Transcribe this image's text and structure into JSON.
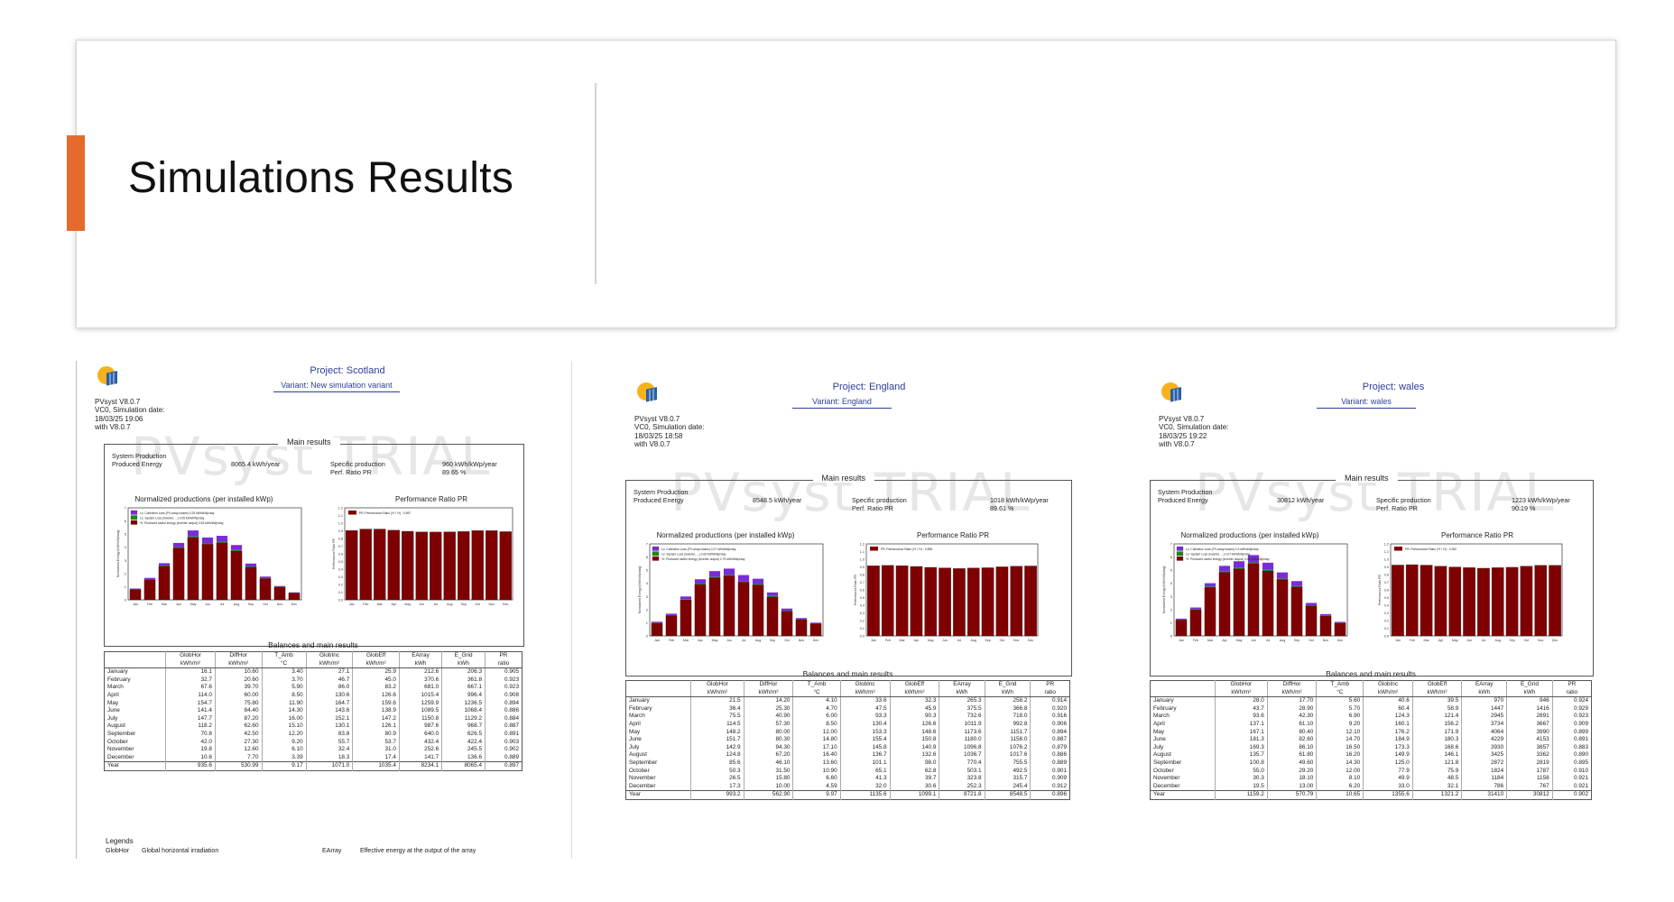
{
  "slide": {
    "title": "Simulations Results"
  },
  "colors": {
    "accent": "#e46b2b",
    "bar_yf": "#7f0000",
    "bar_lc": "#7a2bd8",
    "bar_ls": "#1a8a1a",
    "project_text": "#2c3e9a"
  },
  "reports": [
    {
      "id": "scotland",
      "project": "Project: Scotland",
      "variant": "Variant: New simulation variant",
      "software": [
        "PVsyst V8.0.7",
        "VC0, Simulation date:",
        "18/03/25 19:06",
        "with V8.0.7"
      ],
      "watermark": "PVsyst TRIAL",
      "main_results_title": "Main results",
      "system_production_label": "System Production",
      "produced_energy_label": "Produced Energy",
      "produced_energy": "8065.4 kWh/year",
      "specific_production_label": "Specific production",
      "specific_production": "960 kWh/kWp/year",
      "pr_label": "Perf. Ratio PR",
      "pr_value": "89.65 %",
      "norm_chart_title": "Normalized productions (per installed kWp)",
      "norm_legend": [
        "Lc: Collection Loss (PV-array losses)   0.25 kWh/kWp/day",
        "Ls: System Loss (inverter, ...)   0.06 kWh/kWp/day",
        "Yf: Produced useful energy (inverter output)   2.63 kWh/kWp/day"
      ],
      "pr_chart_title": "Performance Ratio PR",
      "pr_legend": "PR: Performance Ratio (Yf / Yr) :  0.897",
      "balances_title": "Balances and main results",
      "columns": [
        "",
        "GlobHor",
        "DiffHor",
        "T_Amb",
        "GlobInc",
        "GlobEff",
        "EArray",
        "E_Grid",
        "PR"
      ],
      "units": [
        "",
        "kWh/m²",
        "kWh/m²",
        "°C",
        "kWh/m²",
        "kWh/m²",
        "kWh",
        "kWh",
        "ratio"
      ],
      "rows": [
        [
          "January",
          "16.1",
          "10.60",
          "3.40",
          "27.1",
          "25.9",
          "212.6",
          "206.3",
          "0.905"
        ],
        [
          "February",
          "32.7",
          "20.60",
          "3.70",
          "46.7",
          "45.0",
          "370.6",
          "361.8",
          "0.923"
        ],
        [
          "March",
          "67.6",
          "39.70",
          "5.90",
          "86.0",
          "83.2",
          "681.0",
          "667.1",
          "0.923"
        ],
        [
          "April",
          "114.0",
          "60.00",
          "8.50",
          "130.6",
          "126.6",
          "1015.4",
          "996.4",
          "0.908"
        ],
        [
          "May",
          "154.7",
          "75.80",
          "11.90",
          "164.7",
          "159.6",
          "1259.9",
          "1236.5",
          "0.894"
        ],
        [
          "June",
          "141.4",
          "84.40",
          "14.30",
          "143.6",
          "138.9",
          "1089.5",
          "1068.4",
          "0.886"
        ],
        [
          "July",
          "147.7",
          "87.20",
          "16.00",
          "152.1",
          "147.2",
          "1150.8",
          "1129.2",
          "0.884"
        ],
        [
          "August",
          "118.2",
          "62.60",
          "15.10",
          "130.1",
          "126.1",
          "987.6",
          "968.7",
          "0.887"
        ],
        [
          "September",
          "70.8",
          "42.50",
          "12.20",
          "83.8",
          "80.9",
          "640.0",
          "626.5",
          "0.891"
        ],
        [
          "October",
          "42.0",
          "27.30",
          "9.20",
          "55.7",
          "53.7",
          "432.4",
          "422.4",
          "0.903"
        ],
        [
          "November",
          "19.8",
          "12.60",
          "6.10",
          "32.4",
          "31.0",
          "252.6",
          "245.5",
          "0.902"
        ],
        [
          "December",
          "10.6",
          "7.70",
          "3.39",
          "18.3",
          "17.4",
          "141.7",
          "136.6",
          "0.889"
        ]
      ],
      "year": [
        "Year",
        "935.6",
        "530.99",
        "9.17",
        "1071.0",
        "1035.4",
        "8234.1",
        "8065.4",
        "0.897"
      ],
      "legends_title": "Legends",
      "legend_rows": [
        [
          "GlobHor",
          "Global horizontal irradiation",
          "EArray",
          "Effective energy at the output of the array"
        ]
      ],
      "chart_data": {
        "type": "bar",
        "categories": [
          "Jan",
          "Feb",
          "Mar",
          "Apr",
          "May",
          "Jun",
          "Jul",
          "Aug",
          "Sep",
          "Oct",
          "Nov",
          "Dec"
        ],
        "series": [
          {
            "name": "Yf: Produced useful energy (inverter output)",
            "values": [
              0.79,
              1.54,
              2.56,
              3.95,
              4.75,
              4.24,
              4.34,
              3.72,
              2.49,
              1.62,
              0.97,
              0.52
            ]
          },
          {
            "name": "Lc: Collection Loss (PV-array losses)",
            "values": [
              0.05,
              0.1,
              0.18,
              0.32,
              0.45,
              0.42,
              0.45,
              0.38,
              0.22,
              0.12,
              0.06,
              0.04
            ]
          },
          {
            "name": "Ls: System Loss (inverter, ...)",
            "values": [
              0.02,
              0.03,
              0.05,
              0.06,
              0.08,
              0.08,
              0.08,
              0.07,
              0.05,
              0.03,
              0.02,
              0.01
            ]
          }
        ],
        "pr": [
          0.905,
          0.923,
          0.923,
          0.908,
          0.894,
          0.886,
          0.884,
          0.887,
          0.891,
          0.903,
          0.902,
          0.889
        ],
        "ylabel": "Normalized Energy [kWh/kWp/day]",
        "ylim": [
          0,
          7
        ],
        "pr_ylabel": "Performance Ratio PR",
        "pr_ylim": [
          0,
          1.2
        ]
      }
    },
    {
      "id": "england",
      "project": "Project: England",
      "variant": "Variant: England",
      "software": [
        "PVsyst V8.0.7",
        "VC0, Simulation date:",
        "18/03/25 18:58",
        "with V8.0.7"
      ],
      "watermark": "PVsyst TRIAL",
      "main_results_title": "Main results",
      "system_production_label": "System Production",
      "produced_energy_label": "Produced Energy",
      "produced_energy": "8548.5 kWh/year",
      "specific_production_label": "Specific production",
      "specific_production": "1018 kWh/kWp/year",
      "pr_label": "Perf. Ratio PR",
      "pr_value": "89.61 %",
      "norm_chart_title": "Normalized productions (per installed kWp)",
      "norm_legend": [
        "Lc: Collection Loss (PV-array losses)   0.27 kWh/kWp/day",
        "Ls: System Loss (inverter, ...)   0.06 kWh/kWp/day",
        "Yf: Produced useful energy (inverter output)   2.79 kWh/kWp/day"
      ],
      "pr_chart_title": "Performance Ratio PR",
      "pr_legend": "PR: Performance Ratio (Yf / Yr) :  0.896",
      "balances_title": "Balances and main results",
      "columns": [
        "",
        "GlobHor",
        "DiffHor",
        "T_Amb",
        "GlobInc",
        "GlobEff",
        "EArray",
        "E_Grid",
        "PR"
      ],
      "units": [
        "",
        "kWh/m²",
        "kWh/m²",
        "°C",
        "kWh/m²",
        "kWh/m²",
        "kWh",
        "kWh",
        "ratio"
      ],
      "rows": [
        [
          "January",
          "21.5",
          "14.20",
          "4.10",
          "33.6",
          "32.3",
          "265.3",
          "258.2",
          "0.914"
        ],
        [
          "February",
          "36.4",
          "25.30",
          "4.70",
          "47.5",
          "45.9",
          "375.5",
          "366.8",
          "0.920"
        ],
        [
          "March",
          "75.5",
          "40.90",
          "6.00",
          "93.3",
          "90.3",
          "732.6",
          "718.0",
          "0.916"
        ],
        [
          "April",
          "114.5",
          "57.30",
          "8.50",
          "130.4",
          "126.6",
          "1011.9",
          "992.8",
          "0.906"
        ],
        [
          "May",
          "148.2",
          "80.00",
          "12.00",
          "153.3",
          "148.6",
          "1173.6",
          "1151.7",
          "0.894"
        ],
        [
          "June",
          "151.7",
          "80.30",
          "14.80",
          "155.4",
          "150.8",
          "1180.0",
          "1158.0",
          "0.887"
        ],
        [
          "July",
          "142.9",
          "94.30",
          "17.10",
          "145.8",
          "140.9",
          "1096.8",
          "1076.2",
          "0.879"
        ],
        [
          "August",
          "124.8",
          "67.20",
          "16.40",
          "136.7",
          "132.6",
          "1036.7",
          "1017.6",
          "0.886"
        ],
        [
          "September",
          "85.6",
          "46.10",
          "13.60",
          "101.1",
          "98.0",
          "770.4",
          "755.5",
          "0.889"
        ],
        [
          "October",
          "50.3",
          "31.50",
          "10.90",
          "65.1",
          "62.8",
          "503.1",
          "492.5",
          "0.901"
        ],
        [
          "November",
          "26.5",
          "15.80",
          "6.60",
          "41.3",
          "39.7",
          "323.8",
          "315.7",
          "0.909"
        ],
        [
          "December",
          "17.3",
          "10.00",
          "4.59",
          "32.0",
          "30.6",
          "252.3",
          "245.4",
          "0.912"
        ]
      ],
      "year": [
        "Year",
        "993.2",
        "562.90",
        "9.97",
        "1135.6",
        "1099.1",
        "8721.8",
        "8548.5",
        "0.896"
      ],
      "legends_title": "",
      "legend_rows": [],
      "chart_data": {
        "type": "bar",
        "categories": [
          "Jan",
          "Feb",
          "Mar",
          "Apr",
          "May",
          "Jun",
          "Jul",
          "Aug",
          "Sep",
          "Oct",
          "Nov",
          "Dec"
        ],
        "series": [
          {
            "name": "Yf: Produced useful energy (inverter output)",
            "values": [
              0.98,
              1.55,
              2.75,
              3.92,
              4.43,
              4.58,
              4.1,
              3.88,
              2.97,
              1.88,
              1.24,
              0.93
            ]
          },
          {
            "name": "Lc: Collection Loss (PV-array losses)",
            "values": [
              0.07,
              0.11,
              0.2,
              0.33,
              0.42,
              0.46,
              0.45,
              0.4,
              0.28,
              0.16,
              0.09,
              0.06
            ]
          },
          {
            "name": "Ls: System Loss (inverter, ...)",
            "values": [
              0.03,
              0.03,
              0.05,
              0.06,
              0.08,
              0.08,
              0.08,
              0.07,
              0.06,
              0.04,
              0.03,
              0.02
            ]
          }
        ],
        "pr": [
          0.914,
          0.92,
          0.916,
          0.906,
          0.894,
          0.887,
          0.879,
          0.886,
          0.889,
          0.901,
          0.909,
          0.912
        ],
        "ylabel": "Normalized Energy [kWh/kWp/day]",
        "ylim": [
          0,
          7
        ],
        "pr_ylabel": "Performance Ratio PR",
        "pr_ylim": [
          0,
          1.2
        ]
      }
    },
    {
      "id": "wales",
      "project": "Project: wales",
      "variant": "Variant: wales",
      "software": [
        "PVsyst V8.0.7",
        "VC0, Simulation date:",
        "18/03/25 19:22",
        "with V8.0.7"
      ],
      "watermark": "PVsyst TRIAL",
      "main_results_title": "Main results",
      "system_production_label": "System Production",
      "produced_energy_label": "Produced Energy",
      "produced_energy": "30812 kWh/year",
      "specific_production_label": "Specific production",
      "specific_production": "1223 kWh/kWp/year",
      "pr_label": "Perf. Ratio PR",
      "pr_value": "90.19 %",
      "norm_chart_title": "Normalized productions (per installed kWp)",
      "norm_legend": [
        "Lc: Collection Loss (PV-array losses)   0.3 kWh/kWp/day",
        "Ls: System Loss (inverter, ...)   0.07 kWh/kWp/day",
        "Yf: Produced useful energy (inverter output)   3.35 kWh/kWp/day"
      ],
      "pr_chart_title": "Performance Ratio PR",
      "pr_legend": "PR: Performance Ratio (Yf / Yr) :  0.902",
      "balances_title": "Balances and main results",
      "columns": [
        "",
        "GlobHor",
        "DiffHor",
        "T_Amb",
        "GlobInc",
        "GlobEff",
        "EArray",
        "E_Grid",
        "PR"
      ],
      "units": [
        "",
        "kWh/m²",
        "kWh/m²",
        "°C",
        "kWh/m²",
        "kWh/m²",
        "kWh",
        "kWh",
        "ratio"
      ],
      "rows": [
        [
          "January",
          "28.0",
          "17.70",
          "5.60",
          "40.6",
          "39.5",
          "970",
          "946",
          "0.924"
        ],
        [
          "February",
          "43.7",
          "28.90",
          "5.70",
          "60.4",
          "58.9",
          "1447",
          "1416",
          "0.929"
        ],
        [
          "March",
          "93.6",
          "42.30",
          "6.90",
          "124.3",
          "121.4",
          "2945",
          "2891",
          "0.923"
        ],
        [
          "April",
          "137.1",
          "61.10",
          "9.20",
          "160.1",
          "156.2",
          "3734",
          "3667",
          "0.909"
        ],
        [
          "May",
          "167.1",
          "80.40",
          "12.10",
          "176.2",
          "171.9",
          "4064",
          "3990",
          "0.899"
        ],
        [
          "June",
          "181.3",
          "82.60",
          "14.70",
          "184.9",
          "180.3",
          "4229",
          "4153",
          "0.891"
        ],
        [
          "July",
          "169.3",
          "86.10",
          "16.50",
          "173.3",
          "168.6",
          "3930",
          "3857",
          "0.883"
        ],
        [
          "August",
          "135.7",
          "61.80",
          "16.20",
          "149.9",
          "146.1",
          "3425",
          "3362",
          "0.890"
        ],
        [
          "September",
          "100.8",
          "49.60",
          "14.30",
          "125.0",
          "121.8",
          "2872",
          "2819",
          "0.895"
        ],
        [
          "October",
          "55.0",
          "29.20",
          "12.00",
          "77.9",
          "75.9",
          "1824",
          "1787",
          "0.910"
        ],
        [
          "November",
          "30.3",
          "18.10",
          "8.10",
          "49.9",
          "48.5",
          "1184",
          "1158",
          "0.921"
        ],
        [
          "December",
          "19.5",
          "13.00",
          "6.20",
          "33.0",
          "32.1",
          "786",
          "767",
          "0.921"
        ]
      ],
      "year": [
        "Year",
        "1159.2",
        "570.79",
        "10.65",
        "1355.6",
        "1321.2",
        "31410",
        "30812",
        "0.902"
      ],
      "legends_title": "",
      "legend_rows": [],
      "chart_data": {
        "type": "bar",
        "categories": [
          "Jan",
          "Feb",
          "Mar",
          "Apr",
          "May",
          "Jun",
          "Jul",
          "Aug",
          "Sep",
          "Oct",
          "Nov",
          "Dec"
        ],
        "series": [
          {
            "name": "Yf: Produced useful energy (inverter output)",
            "values": [
              1.21,
              2.01,
              3.7,
              4.85,
              5.11,
              5.49,
              4.94,
              4.3,
              3.73,
              2.29,
              1.53,
              0.98
            ]
          },
          {
            "name": "Lc: Collection Loss (PV-array losses)",
            "values": [
              0.08,
              0.12,
              0.25,
              0.4,
              0.48,
              0.56,
              0.54,
              0.45,
              0.37,
              0.18,
              0.1,
              0.07
            ]
          },
          {
            "name": "Ls: System Loss (inverter, ...)",
            "values": [
              0.02,
              0.03,
              0.06,
              0.08,
              0.09,
              0.1,
              0.09,
              0.08,
              0.07,
              0.04,
              0.03,
              0.02
            ]
          }
        ],
        "pr": [
          0.924,
          0.929,
          0.923,
          0.909,
          0.899,
          0.891,
          0.883,
          0.89,
          0.895,
          0.91,
          0.921,
          0.921
        ],
        "ylabel": "Normalized Energy [kWh/kWp/day]",
        "ylim": [
          0,
          7
        ],
        "pr_ylabel": "Performance Ratio PR",
        "pr_ylim": [
          0,
          1.2
        ]
      }
    }
  ]
}
